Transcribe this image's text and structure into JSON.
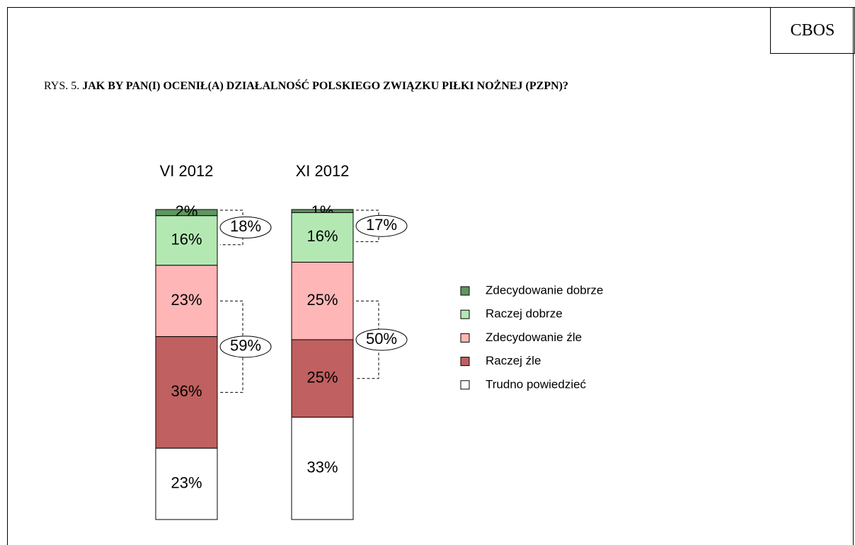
{
  "chart_data": {
    "type": "stacked-bar",
    "source": "CBOS",
    "figure_label": "RYS. 5.",
    "title": "JAK BY PAN(I) OCENIŁ(A) DZIAŁALNOŚĆ POLSKIEGO ZWIĄZKU PIŁKI NOŻNEJ (PZPN)?",
    "categories": [
      "VI 2012",
      "XI 2012"
    ],
    "series": [
      {
        "name": "Zdecydowanie dobrze",
        "color": "#5f975f",
        "values": [
          2,
          1
        ],
        "value_labels": [
          "2%",
          "1%"
        ]
      },
      {
        "name": "Raczej dobrze",
        "color": "#b3e8b3",
        "values": [
          16,
          16
        ],
        "value_labels": [
          "16%",
          "16%"
        ]
      },
      {
        "name": "Zdecydowanie źle",
        "color": "#ffb6b6",
        "values": [
          23,
          25
        ],
        "value_labels": [
          "23%",
          "25%"
        ]
      },
      {
        "name": "Raczej źle",
        "color": "#c06060",
        "values": [
          36,
          25
        ],
        "value_labels": [
          "36%",
          "25%"
        ]
      },
      {
        "name": "Trudno powiedzieć",
        "color": "#ffffff",
        "values": [
          23,
          33
        ],
        "value_labels": [
          "23%",
          "33%"
        ]
      }
    ],
    "group_totals": [
      {
        "series": [
          0,
          1
        ],
        "labels": [
          "18%",
          "17%"
        ]
      },
      {
        "series": [
          2,
          3
        ],
        "labels": [
          "59%",
          "50%"
        ]
      }
    ]
  }
}
